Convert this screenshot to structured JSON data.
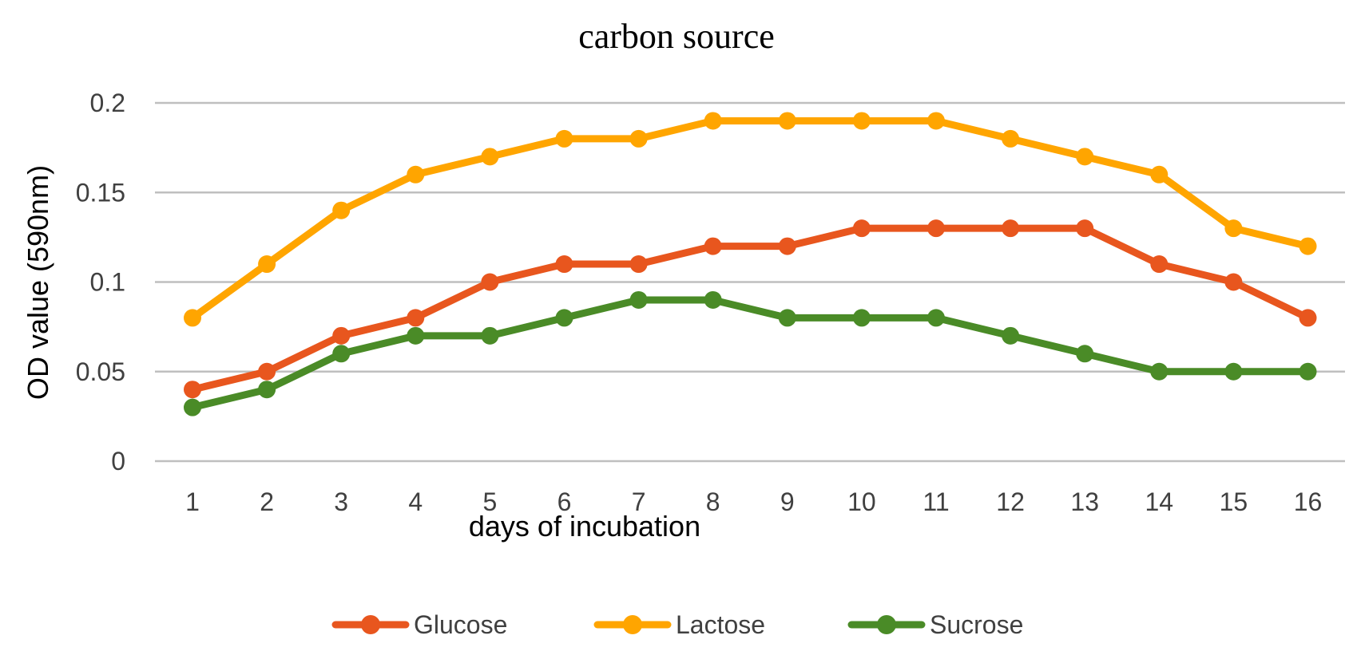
{
  "chart_data": {
    "type": "line",
    "title": "carbon source",
    "xlabel": "days of incubation",
    "ylabel": "OD value (590nm)",
    "categories": [
      "1",
      "2",
      "3",
      "4",
      "5",
      "6",
      "7",
      "8",
      "9",
      "10",
      "11",
      "12",
      "13",
      "14",
      "15",
      "16"
    ],
    "y_ticks": [
      "0",
      "0.05",
      "0.1",
      "0.15",
      "0.2"
    ],
    "ylim": [
      0,
      0.2
    ],
    "grid": true,
    "legend_position": "bottom",
    "series": [
      {
        "name": "Glucose",
        "color": "#e8561e",
        "values": [
          0.04,
          0.05,
          0.07,
          0.08,
          0.1,
          0.11,
          0.11,
          0.12,
          0.12,
          0.13,
          0.13,
          0.13,
          0.13,
          0.11,
          0.1,
          0.08
        ]
      },
      {
        "name": "Lactose",
        "color": "#ffa500",
        "values": [
          0.08,
          0.11,
          0.14,
          0.16,
          0.17,
          0.18,
          0.18,
          0.19,
          0.19,
          0.19,
          0.19,
          0.18,
          0.17,
          0.16,
          0.13,
          0.12
        ]
      },
      {
        "name": "Sucrose",
        "color": "#4a8b27",
        "values": [
          0.03,
          0.04,
          0.06,
          0.07,
          0.07,
          0.08,
          0.09,
          0.09,
          0.08,
          0.08,
          0.08,
          0.07,
          0.06,
          0.05,
          0.05,
          0.05
        ]
      }
    ]
  }
}
